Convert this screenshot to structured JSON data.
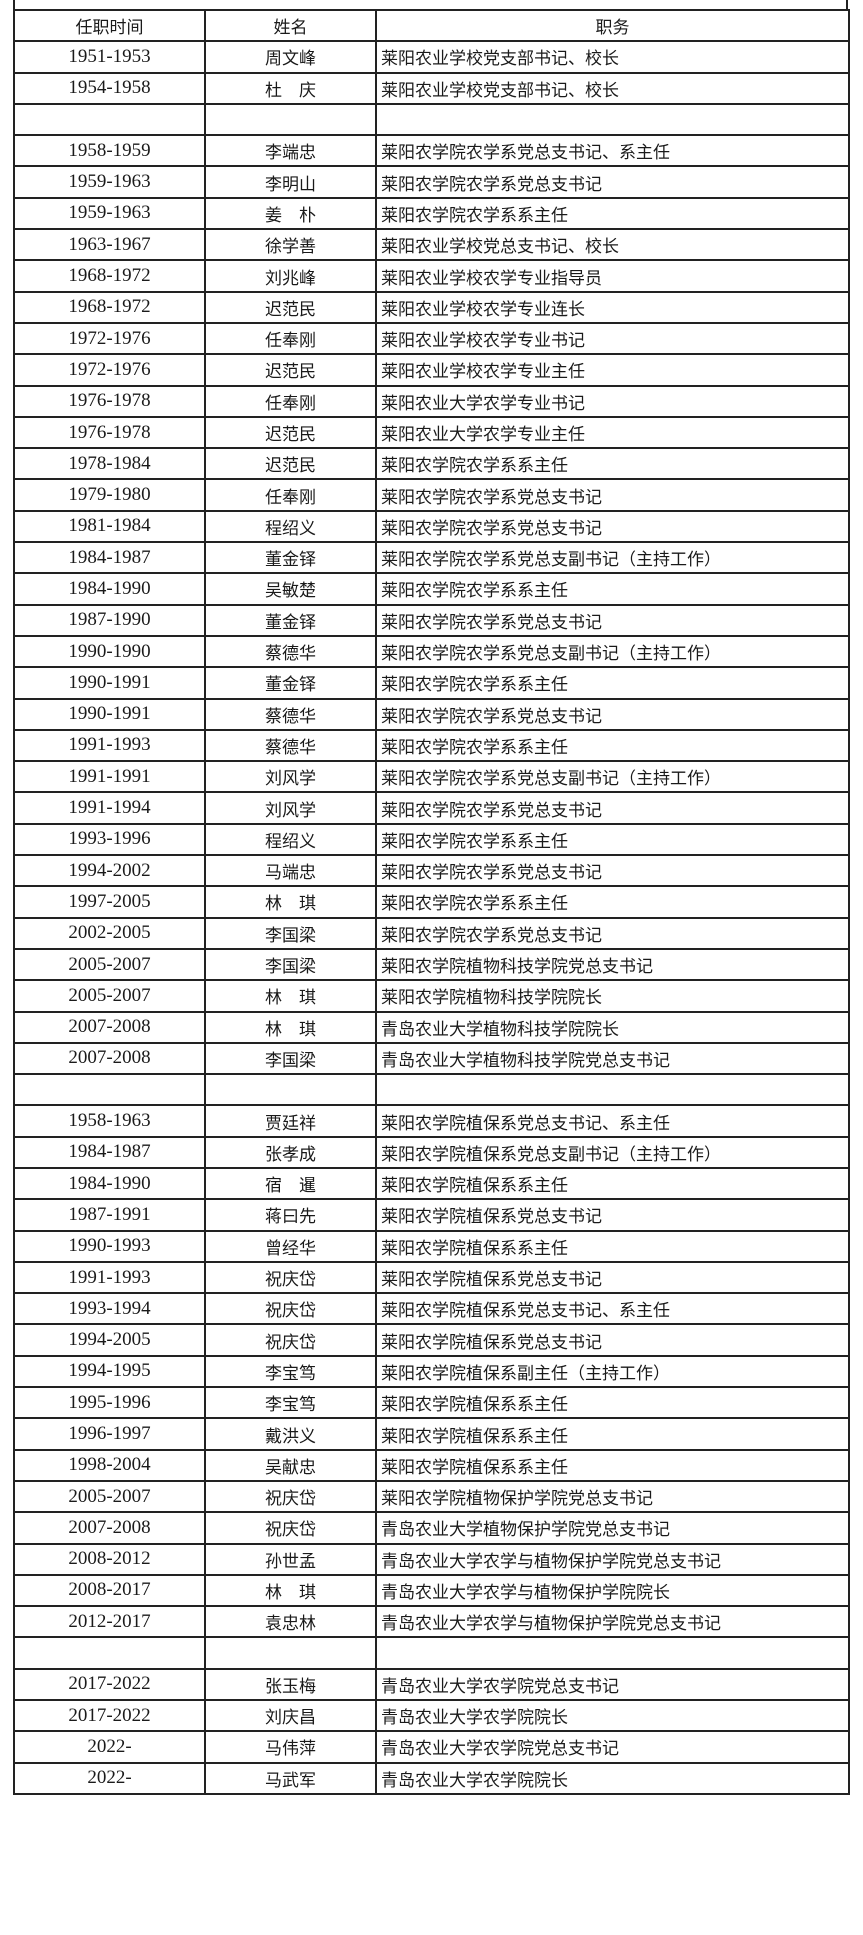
{
  "table": {
    "headers": [
      "任职时间",
      "姓名",
      "职务"
    ],
    "rows": [
      [
        "1951-1953",
        "周文峰",
        "莱阳农业学校党支部书记、校长"
      ],
      [
        "1954-1958",
        "杜　庆",
        "莱阳农业学校党支部书记、校长"
      ],
      [
        "",
        "",
        ""
      ],
      [
        "1958-1959",
        "李端忠",
        "莱阳农学院农学系党总支书记、系主任"
      ],
      [
        "1959-1963",
        "李明山",
        "莱阳农学院农学系党总支书记"
      ],
      [
        "1959-1963",
        "姜　朴",
        "莱阳农学院农学系系主任"
      ],
      [
        "1963-1967",
        "徐学善",
        "莱阳农业学校党总支书记、校长"
      ],
      [
        "1968-1972",
        "刘兆峰",
        "莱阳农业学校农学专业指导员"
      ],
      [
        "1968-1972",
        "迟范民",
        "莱阳农业学校农学专业连长"
      ],
      [
        "1972-1976",
        "任奉刚",
        "莱阳农业学校农学专业书记"
      ],
      [
        "1972-1976",
        "迟范民",
        "莱阳农业学校农学专业主任"
      ],
      [
        "1976-1978",
        "任奉刚",
        "莱阳农业大学农学专业书记"
      ],
      [
        "1976-1978",
        "迟范民",
        "莱阳农业大学农学专业主任"
      ],
      [
        "1978-1984",
        "迟范民",
        "莱阳农学院农学系系主任"
      ],
      [
        "1979-1980",
        "任奉刚",
        "莱阳农学院农学系党总支书记"
      ],
      [
        "1981-1984",
        "程绍义",
        "莱阳农学院农学系党总支书记"
      ],
      [
        "1984-1987",
        "董金铎",
        "莱阳农学院农学系党总支副书记（主持工作）"
      ],
      [
        "1984-1990",
        "吴敏楚",
        "莱阳农学院农学系系主任"
      ],
      [
        "1987-1990",
        "董金铎",
        "莱阳农学院农学系党总支书记"
      ],
      [
        "1990-1990",
        "蔡德华",
        "莱阳农学院农学系党总支副书记（主持工作）"
      ],
      [
        "1990-1991",
        "董金铎",
        "莱阳农学院农学系系主任"
      ],
      [
        "1990-1991",
        "蔡德华",
        "莱阳农学院农学系党总支书记"
      ],
      [
        "1991-1993",
        "蔡德华",
        "莱阳农学院农学系系主任"
      ],
      [
        "1991-1991",
        "刘风学",
        "莱阳农学院农学系党总支副书记（主持工作）"
      ],
      [
        "1991-1994",
        "刘风学",
        "莱阳农学院农学系党总支书记"
      ],
      [
        "1993-1996",
        "程绍义",
        "莱阳农学院农学系系主任"
      ],
      [
        "1994-2002",
        "马端忠",
        "莱阳农学院农学系党总支书记"
      ],
      [
        "1997-2005",
        "林　琪",
        "莱阳农学院农学系系主任"
      ],
      [
        "2002-2005",
        "李国梁",
        "莱阳农学院农学系党总支书记"
      ],
      [
        "2005-2007",
        "李国梁",
        "莱阳农学院植物科技学院党总支书记"
      ],
      [
        "2005-2007",
        "林　琪",
        "莱阳农学院植物科技学院院长"
      ],
      [
        "2007-2008",
        "林　琪",
        "青岛农业大学植物科技学院院长"
      ],
      [
        "2007-2008",
        "李国梁",
        "青岛农业大学植物科技学院党总支书记"
      ],
      [
        "",
        "",
        ""
      ],
      [
        "1958-1963",
        "贾廷祥",
        "莱阳农学院植保系党总支书记、系主任"
      ],
      [
        "1984-1987",
        "张孝成",
        "莱阳农学院植保系党总支副书记（主持工作）"
      ],
      [
        "1984-1990",
        "宿　暹",
        "莱阳农学院植保系系主任"
      ],
      [
        "1987-1991",
        "蒋曰先",
        "莱阳农学院植保系党总支书记"
      ],
      [
        "1990-1993",
        "曾经华",
        "莱阳农学院植保系系主任"
      ],
      [
        "1991-1993",
        "祝庆岱",
        "莱阳农学院植保系党总支书记"
      ],
      [
        "1993-1994",
        "祝庆岱",
        "莱阳农学院植保系党总支书记、系主任"
      ],
      [
        "1994-2005",
        "祝庆岱",
        "莱阳农学院植保系党总支书记"
      ],
      [
        "1994-1995",
        "李宝笃",
        "莱阳农学院植保系副主任（主持工作）"
      ],
      [
        "1995-1996",
        "李宝笃",
        "莱阳农学院植保系系主任"
      ],
      [
        "1996-1997",
        "戴洪义",
        "莱阳农学院植保系系主任"
      ],
      [
        "1998-2004",
        "吴献忠",
        "莱阳农学院植保系系主任"
      ],
      [
        "2005-2007",
        "祝庆岱",
        "莱阳农学院植物保护学院党总支书记"
      ],
      [
        "2007-2008",
        "祝庆岱",
        "青岛农业大学植物保护学院党总支书记"
      ],
      [
        "2008-2012",
        "孙世孟",
        "青岛农业大学农学与植物保护学院党总支书记"
      ],
      [
        "2008-2017",
        "林　琪",
        "青岛农业大学农学与植物保护学院院长"
      ],
      [
        "2012-2017",
        "袁忠林",
        "青岛农业大学农学与植物保护学院党总支书记"
      ],
      [
        "",
        "",
        ""
      ],
      [
        "2017-2022",
        "张玉梅",
        "青岛农业大学农学院党总支书记"
      ],
      [
        "2017-2022",
        "刘庆昌",
        "青岛农业大学农学院院长"
      ],
      [
        "2022-",
        "马伟萍",
        "青岛农业大学农学院党总支书记"
      ],
      [
        "2022-",
        "马武军",
        "青岛农业大学农学院院长"
      ]
    ]
  }
}
